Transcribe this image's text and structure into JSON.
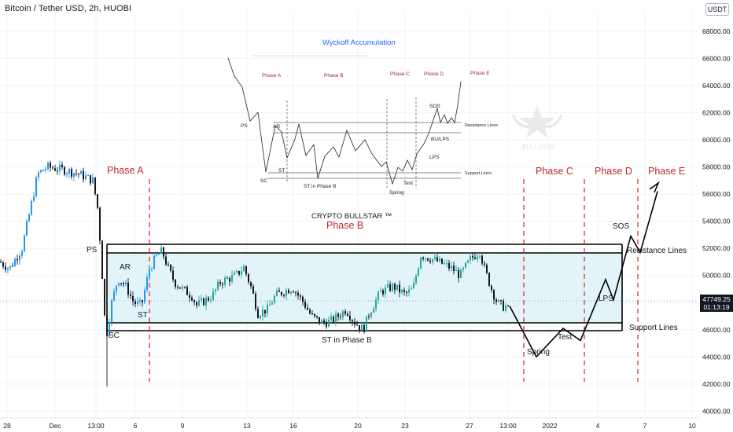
{
  "header": {
    "symbol": "Bitcoin / Tether USD, 2h, HUOBI",
    "currency_button": "USDT"
  },
  "price_badge": {
    "price": "47749.25",
    "countdown": "01:13:19"
  },
  "chart_data": {
    "type": "candlestick",
    "y_axis": {
      "ticks": [
        40000,
        42000,
        44000,
        46000,
        48000,
        50000,
        52000,
        54000,
        56000,
        58000,
        60000,
        62000,
        64000,
        66000,
        68000
      ],
      "tick_labels": [
        "40000.00",
        "42000.00",
        "44000.00",
        "46000.00",
        "48000.00",
        "50000.00",
        "52000.00",
        "54000.00",
        "56000.00",
        "58000.00",
        "60000.00",
        "62000.00",
        "64000.00",
        "66000.00",
        "68000.00"
      ],
      "ylim": [
        39500,
        69500
      ]
    },
    "x_axis": {
      "tick_labels": [
        "28",
        "Dec",
        "13:00",
        "6",
        "9",
        "13",
        "16",
        "20",
        "23",
        "27",
        "13:00",
        "2022",
        "4",
        "7",
        "10"
      ]
    },
    "series": [
      {
        "type": "candlestick",
        "approx_close_path": [
          [
            0,
            51000
          ],
          [
            12,
            50500
          ],
          [
            28,
            52000
          ],
          [
            48,
            57500
          ],
          [
            60,
            58000
          ],
          [
            80,
            57800
          ],
          [
            100,
            57500
          ],
          [
            118,
            57000
          ],
          [
            124,
            55000
          ],
          [
            128,
            52000
          ],
          [
            134,
            46000
          ],
          [
            136,
            45800
          ],
          [
            142,
            48000
          ],
          [
            150,
            49800
          ],
          [
            160,
            49200
          ],
          [
            170,
            48000
          ],
          [
            180,
            47800
          ],
          [
            190,
            50500
          ],
          [
            200,
            51500
          ],
          [
            206,
            51800
          ],
          [
            214,
            50500
          ],
          [
            222,
            49500
          ],
          [
            232,
            49000
          ],
          [
            244,
            48500
          ],
          [
            250,
            47800
          ],
          [
            262,
            48200
          ],
          [
            270,
            48500
          ],
          [
            280,
            49500
          ],
          [
            300,
            50000
          ],
          [
            310,
            50600
          ],
          [
            320,
            49000
          ],
          [
            328,
            47200
          ],
          [
            340,
            47500
          ],
          [
            350,
            48500
          ],
          [
            360,
            48800
          ],
          [
            372,
            49100
          ],
          [
            386,
            48000
          ],
          [
            396,
            47000
          ],
          [
            410,
            46500
          ],
          [
            420,
            46600
          ],
          [
            430,
            47000
          ],
          [
            440,
            47500
          ],
          [
            450,
            46600
          ],
          [
            462,
            46000
          ],
          [
            470,
            47300
          ],
          [
            484,
            48800
          ],
          [
            500,
            49200
          ],
          [
            515,
            48600
          ],
          [
            525,
            49000
          ],
          [
            535,
            51500
          ],
          [
            550,
            51200
          ],
          [
            565,
            50800
          ],
          [
            575,
            50500
          ],
          [
            585,
            50000
          ],
          [
            598,
            51200
          ],
          [
            610,
            51800
          ],
          [
            616,
            50500
          ],
          [
            625,
            49000
          ],
          [
            632,
            48000
          ],
          [
            640,
            47700
          ],
          [
            648,
            47749
          ]
        ]
      }
    ],
    "title": "CRYPTO BULLSTAR ™",
    "annotations": {
      "phases": [
        "Phase A",
        "Phase B",
        "Phase C",
        "Phase D",
        "Phase E"
      ],
      "events": [
        "PS",
        "AR",
        "ST",
        "SC",
        "ST in Phase B",
        "Spring",
        "Test",
        "LPS",
        "SOS"
      ],
      "lines": [
        "Resistance Lines",
        "Support Lines"
      ],
      "projection_path": [
        [
          648,
          47749
        ],
        [
          682,
          44000
        ],
        [
          716,
          46100
        ],
        [
          738,
          45200
        ],
        [
          770,
          49700
        ],
        [
          780,
          48200
        ],
        [
          802,
          52900
        ],
        [
          814,
          51700
        ],
        [
          836,
          56200
        ]
      ]
    },
    "inset": {
      "title": "Wyckoff Accumulation",
      "phases": [
        "Phase A",
        "Phase B",
        "Phase C",
        "Phase D",
        "Phase E"
      ],
      "events": [
        "PS",
        "AR",
        "SC",
        "ST",
        "ST in Phase B",
        "Spring",
        "Test",
        "SOS",
        "BU/LPS",
        "LPS"
      ],
      "lines": [
        "Resistance Lines",
        "Support Lines"
      ]
    },
    "watermark": "BULLSTAR",
    "colors": {
      "up": "#26a69a",
      "down": "#131722",
      "up_bar": "#2196f3",
      "phase_text": "#c0282d",
      "phase_line": "#e03030",
      "range_fill": "#e3f4f9",
      "inset_title": "#2962ff"
    }
  }
}
